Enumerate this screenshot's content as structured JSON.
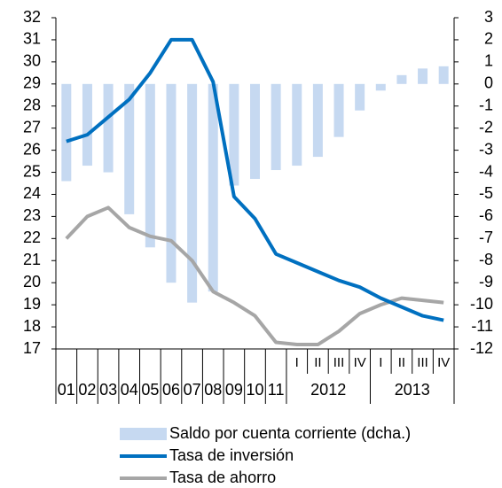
{
  "chart_data": {
    "type": "bar-line",
    "categories": [
      "01",
      "02",
      "03",
      "04",
      "05",
      "06",
      "07",
      "08",
      "09",
      "10",
      "11",
      "I",
      "II",
      "III",
      "IV",
      "I",
      "II",
      "III",
      "IV"
    ],
    "groups": [
      {
        "label": "2012",
        "size": 4
      },
      {
        "label": "2013",
        "size": 4
      }
    ],
    "series": [
      {
        "name": "Saldo por cuenta corriente (dcha.)",
        "type": "bar",
        "axis": "y2",
        "color": "#c6d9f1",
        "values": [
          -4.4,
          -3.7,
          -4.0,
          -5.9,
          -7.4,
          -9.0,
          -9.9,
          -9.4,
          -4.6,
          -4.3,
          -3.9,
          -3.7,
          -3.3,
          -2.4,
          -1.2,
          -0.3,
          0.4,
          0.7,
          0.8
        ]
      },
      {
        "name": "Tasa de inversión",
        "type": "line",
        "color": "#0070c0",
        "values": [
          26.4,
          26.7,
          27.5,
          28.3,
          29.5,
          31.0,
          31.0,
          29.1,
          23.9,
          22.9,
          21.3,
          20.9,
          20.5,
          20.1,
          19.8,
          19.3,
          18.9,
          18.5,
          18.3
        ]
      },
      {
        "name": "Tasa de ahorro",
        "type": "line",
        "color": "#a6a6a6",
        "values": [
          22.0,
          23.0,
          23.4,
          22.5,
          22.1,
          21.9,
          21.0,
          19.6,
          19.1,
          18.5,
          17.3,
          17.2,
          17.2,
          17.8,
          18.6,
          19.0,
          19.3,
          19.2,
          19.1
        ]
      }
    ],
    "ylim": [
      17,
      32
    ],
    "yticks": [
      17,
      18,
      19,
      20,
      21,
      22,
      23,
      24,
      25,
      26,
      27,
      28,
      29,
      30,
      31,
      32
    ],
    "y2lim": [
      -12,
      3
    ],
    "y2ticks": [
      -12,
      -11,
      -10,
      -9,
      -8,
      -7,
      -6,
      -5,
      -4,
      -3,
      -2,
      -1,
      0,
      1,
      2,
      3
    ]
  }
}
